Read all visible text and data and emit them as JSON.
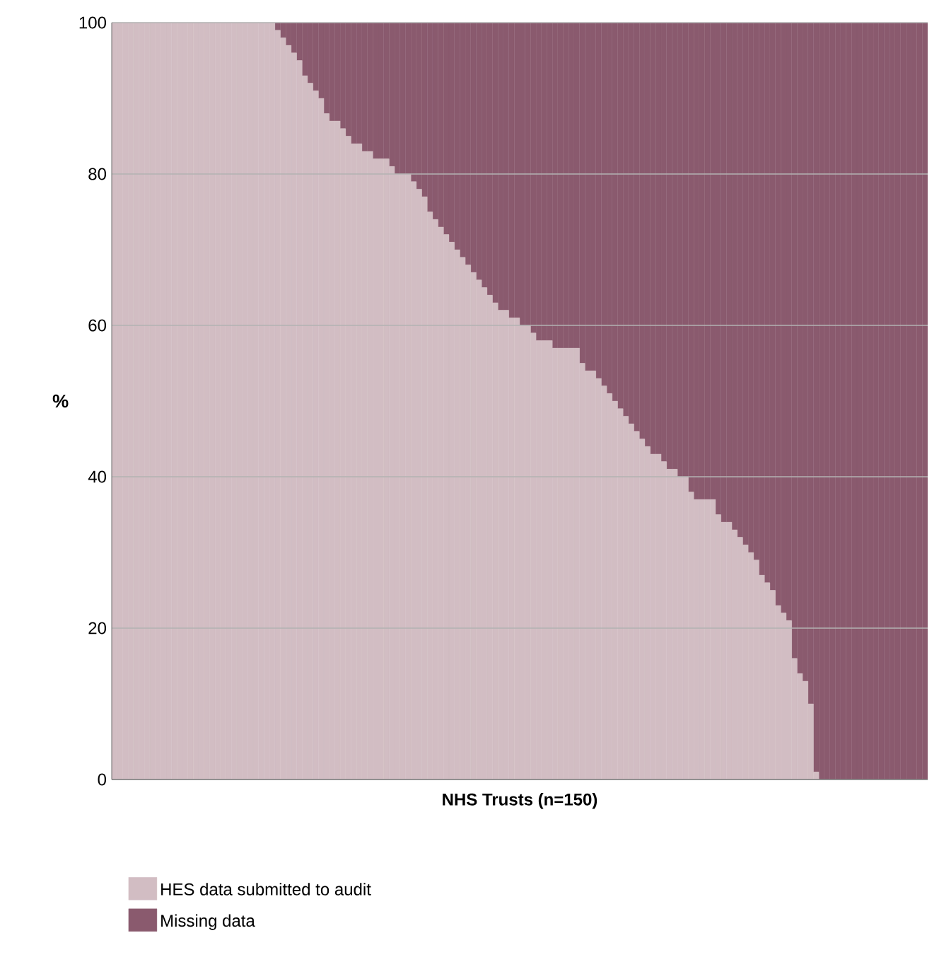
{
  "chart_data": {
    "type": "bar",
    "stacked": true,
    "xlabel": "NHS Trusts (n=150)",
    "ylabel": "%",
    "categories": [
      null,
      null,
      null,
      null,
      null,
      null,
      null,
      null,
      null,
      null,
      null,
      null,
      null,
      null,
      null,
      null,
      null,
      null,
      null,
      null,
      null,
      null,
      null,
      null,
      null,
      null,
      null,
      null,
      null,
      null,
      null,
      null,
      null,
      null,
      null,
      null,
      null,
      null,
      null,
      null,
      null,
      null,
      null,
      null,
      null,
      null,
      null,
      null,
      null,
      null,
      null,
      null,
      null,
      null,
      null,
      null,
      null,
      null,
      null,
      null,
      null,
      null,
      null,
      null,
      null,
      null,
      null,
      null,
      null,
      null,
      null,
      null,
      null,
      null,
      null,
      null,
      null,
      null,
      null,
      null,
      null,
      null,
      null,
      null,
      null,
      null,
      null,
      null,
      null,
      null,
      null,
      null,
      null,
      null,
      null,
      null,
      null,
      null,
      null,
      null,
      null,
      null,
      null,
      null,
      null,
      null,
      null,
      null,
      null,
      null,
      null,
      null,
      null,
      null,
      null,
      null,
      null,
      null,
      null,
      null,
      null,
      null,
      null,
      null,
      null,
      null,
      null,
      null,
      null,
      null,
      null,
      null,
      null,
      null,
      null,
      null,
      null,
      null,
      null,
      null,
      null,
      null,
      null,
      null,
      null,
      null,
      null,
      null,
      null,
      null
    ],
    "series": [
      {
        "name": "HES data submitted to audit",
        "color": "#d2bdc3",
        "values": [
          100,
          100,
          100,
          100,
          100,
          100,
          100,
          100,
          100,
          100,
          100,
          100,
          100,
          100,
          100,
          100,
          100,
          100,
          100,
          100,
          100,
          100,
          100,
          100,
          100,
          100,
          100,
          100,
          100,
          100,
          99,
          98,
          97,
          96,
          95,
          93,
          92,
          91,
          90,
          88,
          87,
          87,
          86,
          85,
          84,
          84,
          83,
          83,
          82,
          82,
          82,
          81,
          80,
          80,
          80,
          79,
          78,
          77,
          75,
          74,
          73,
          72,
          71,
          70,
          69,
          68,
          67,
          66,
          65,
          64,
          63,
          62,
          62,
          61,
          61,
          60,
          60,
          59,
          58,
          58,
          58,
          57,
          57,
          57,
          57,
          57,
          55,
          54,
          54,
          53,
          52,
          51,
          50,
          49,
          48,
          47,
          46,
          45,
          44,
          43,
          43,
          42,
          41,
          41,
          40,
          40,
          38,
          37,
          37,
          37,
          37,
          35,
          34,
          34,
          33,
          32,
          31,
          30,
          29,
          27,
          26,
          25,
          23,
          22,
          21,
          16,
          14,
          13,
          10,
          1,
          0,
          0,
          0,
          0,
          0,
          0,
          0,
          0,
          0,
          0,
          0,
          0,
          0,
          0,
          0,
          0,
          0,
          0,
          0,
          0
        ]
      },
      {
        "name": "Missing data",
        "color": "#8a5a6e",
        "values": [
          0,
          0,
          0,
          0,
          0,
          0,
          0,
          0,
          0,
          0,
          0,
          0,
          0,
          0,
          0,
          0,
          0,
          0,
          0,
          0,
          0,
          0,
          0,
          0,
          0,
          0,
          0,
          0,
          0,
          0,
          1,
          2,
          3,
          4,
          5,
          7,
          8,
          9,
          10,
          12,
          13,
          13,
          14,
          15,
          16,
          16,
          17,
          17,
          18,
          18,
          18,
          19,
          20,
          20,
          20,
          21,
          22,
          23,
          25,
          26,
          27,
          28,
          29,
          30,
          31,
          32,
          33,
          34,
          35,
          36,
          37,
          38,
          38,
          39,
          39,
          40,
          40,
          41,
          42,
          42,
          42,
          43,
          43,
          43,
          43,
          43,
          45,
          46,
          46,
          47,
          48,
          49,
          50,
          51,
          52,
          53,
          54,
          55,
          56,
          57,
          57,
          58,
          59,
          59,
          60,
          60,
          62,
          63,
          63,
          63,
          63,
          65,
          66,
          66,
          67,
          68,
          69,
          70,
          71,
          73,
          74,
          75,
          77,
          78,
          79,
          84,
          86,
          87,
          90,
          99,
          100,
          100,
          100,
          100,
          100,
          100,
          100,
          100,
          100,
          100,
          100,
          100,
          100,
          100,
          100,
          100,
          100,
          100,
          100,
          100
        ]
      }
    ],
    "ylim": [
      0,
      100
    ],
    "yticks": [
      0,
      20,
      40,
      60,
      80,
      100
    ],
    "grid": "y",
    "legend": "bottom",
    "tick_labels": "y"
  }
}
